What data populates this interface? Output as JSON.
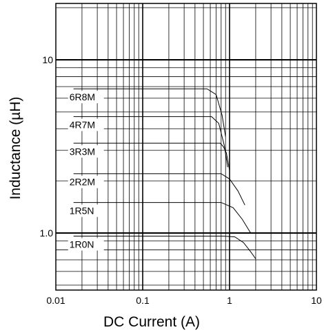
{
  "chart_data": {
    "type": "line",
    "xlabel": "DC Current (A)",
    "ylabel": "Inductance (µH)",
    "x_scale": "log",
    "y_scale": "log",
    "xlim": [
      0.01,
      10
    ],
    "ylim": [
      0.5,
      30
    ],
    "x_ticks": [
      {
        "value": 0.01,
        "label": "0.01"
      },
      {
        "value": 0.1,
        "label": "0.1"
      },
      {
        "value": 1,
        "label": "1"
      },
      {
        "value": 10,
        "label": "10"
      }
    ],
    "y_ticks": [
      {
        "value": 1.0,
        "label": "1.0"
      },
      {
        "value": 10,
        "label": "10"
      }
    ],
    "grid": true,
    "series": [
      {
        "name": "6R8M",
        "points": [
          [
            0.016,
            6.8
          ],
          [
            0.55,
            6.8
          ],
          [
            0.7,
            6.3
          ],
          [
            0.82,
            4.8
          ],
          [
            0.9,
            3.6
          ]
        ],
        "label_at": 0.016
      },
      {
        "name": "4R7M",
        "points": [
          [
            0.016,
            4.7
          ],
          [
            0.62,
            4.7
          ],
          [
            0.75,
            4.3
          ],
          [
            0.87,
            3.2
          ],
          [
            0.95,
            2.4
          ]
        ],
        "label_at": 0.016
      },
      {
        "name": "3R3M",
        "points": [
          [
            0.016,
            3.3
          ],
          [
            0.78,
            3.3
          ],
          [
            0.85,
            3.15
          ],
          [
            0.92,
            2.9
          ],
          [
            1.0,
            2.3
          ]
        ],
        "label_at": 0.016
      },
      {
        "name": "2R2M",
        "points": [
          [
            0.016,
            2.2
          ],
          [
            0.8,
            2.2
          ],
          [
            1.0,
            2.05
          ],
          [
            1.25,
            1.75
          ],
          [
            1.5,
            1.45
          ]
        ],
        "label_at": 0.016
      },
      {
        "name": "1R5N",
        "points": [
          [
            0.016,
            1.5
          ],
          [
            0.8,
            1.5
          ],
          [
            1.1,
            1.4
          ],
          [
            1.4,
            1.2
          ],
          [
            1.75,
            1.0
          ]
        ],
        "label_at": 0.016
      },
      {
        "name": "1R0N",
        "points": [
          [
            0.016,
            0.96
          ],
          [
            0.85,
            0.96
          ],
          [
            1.15,
            0.95
          ],
          [
            1.45,
            0.88
          ],
          [
            1.75,
            0.78
          ],
          [
            2.0,
            0.71
          ]
        ],
        "label_at": 0.016
      }
    ]
  }
}
